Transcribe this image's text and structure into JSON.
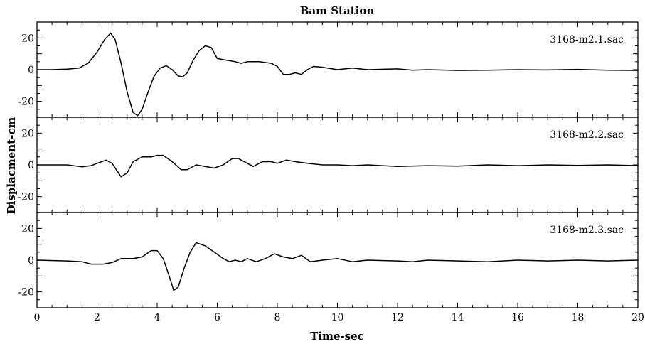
{
  "chart_data": {
    "type": "line",
    "title": "Bam Station",
    "xlabel": "Time-sec",
    "ylabel": "Displacment-cm",
    "xlim": [
      0,
      20
    ],
    "xticks": [
      "0",
      "2",
      "4",
      "6",
      "8",
      "10",
      "12",
      "14",
      "16",
      "18",
      "20"
    ],
    "panels": [
      {
        "name": "3168-m2.1.sac",
        "ylim": [
          -30,
          30
        ],
        "yticks": [
          "20",
          "0",
          "-20"
        ],
        "points": [
          [
            0,
            0
          ],
          [
            0.5,
            0
          ],
          [
            1.0,
            0.3
          ],
          [
            1.4,
            1
          ],
          [
            1.7,
            4
          ],
          [
            2.0,
            11
          ],
          [
            2.25,
            19
          ],
          [
            2.45,
            23
          ],
          [
            2.6,
            19
          ],
          [
            2.8,
            4
          ],
          [
            3.0,
            -14
          ],
          [
            3.2,
            -27
          ],
          [
            3.35,
            -29
          ],
          [
            3.5,
            -25
          ],
          [
            3.7,
            -14
          ],
          [
            3.9,
            -4
          ],
          [
            4.1,
            1
          ],
          [
            4.3,
            2.5
          ],
          [
            4.5,
            0
          ],
          [
            4.7,
            -4
          ],
          [
            4.85,
            -4.5
          ],
          [
            5.0,
            -2
          ],
          [
            5.2,
            6
          ],
          [
            5.4,
            12
          ],
          [
            5.6,
            15
          ],
          [
            5.8,
            14
          ],
          [
            6.0,
            7
          ],
          [
            6.3,
            6
          ],
          [
            6.6,
            5
          ],
          [
            6.8,
            4
          ],
          [
            7.0,
            5
          ],
          [
            7.4,
            5
          ],
          [
            7.8,
            4
          ],
          [
            8.0,
            2
          ],
          [
            8.2,
            -3
          ],
          [
            8.4,
            -3
          ],
          [
            8.6,
            -2
          ],
          [
            8.8,
            -3
          ],
          [
            9.0,
            0
          ],
          [
            9.2,
            2
          ],
          [
            9.5,
            1.5
          ],
          [
            10,
            0
          ],
          [
            10.5,
            1
          ],
          [
            11,
            0
          ],
          [
            12,
            0.5
          ],
          [
            12.5,
            -0.3
          ],
          [
            13,
            0
          ],
          [
            14,
            -0.5
          ],
          [
            15,
            -0.3
          ],
          [
            16,
            0
          ],
          [
            17,
            -0.2
          ],
          [
            18,
            0.2
          ],
          [
            19,
            -0.3
          ],
          [
            20,
            -0.5
          ]
        ]
      },
      {
        "name": "3168-m2.2.sac",
        "ylim": [
          -30,
          30
        ],
        "yticks": [
          "20",
          "0",
          "-20"
        ],
        "points": [
          [
            0,
            0
          ],
          [
            1.0,
            0
          ],
          [
            1.5,
            -1.2
          ],
          [
            1.8,
            -0.5
          ],
          [
            2.0,
            1
          ],
          [
            2.3,
            3
          ],
          [
            2.5,
            1
          ],
          [
            2.8,
            -7.5
          ],
          [
            3.0,
            -5
          ],
          [
            3.2,
            2
          ],
          [
            3.5,
            5
          ],
          [
            3.8,
            5
          ],
          [
            4.0,
            6
          ],
          [
            4.2,
            6
          ],
          [
            4.5,
            2
          ],
          [
            4.8,
            -3
          ],
          [
            5.0,
            -3
          ],
          [
            5.3,
            0
          ],
          [
            5.6,
            -1
          ],
          [
            5.9,
            -2
          ],
          [
            6.2,
            0
          ],
          [
            6.5,
            4
          ],
          [
            6.7,
            4
          ],
          [
            7.0,
            1
          ],
          [
            7.2,
            -1
          ],
          [
            7.5,
            2
          ],
          [
            7.8,
            2
          ],
          [
            8.0,
            1
          ],
          [
            8.3,
            3
          ],
          [
            8.6,
            2
          ],
          [
            9.0,
            1
          ],
          [
            9.5,
            0
          ],
          [
            10,
            0
          ],
          [
            10.5,
            -0.5
          ],
          [
            11,
            0
          ],
          [
            12,
            -1
          ],
          [
            13,
            -0.5
          ],
          [
            14,
            -0.8
          ],
          [
            15,
            0
          ],
          [
            16,
            -0.5
          ],
          [
            17,
            0
          ],
          [
            18,
            -0.3
          ],
          [
            19,
            0
          ],
          [
            20,
            -0.5
          ]
        ]
      },
      {
        "name": "3168-m2.3.sac",
        "ylim": [
          -30,
          30
        ],
        "yticks": [
          "20",
          "0",
          "-20"
        ],
        "points": [
          [
            0,
            0
          ],
          [
            1.0,
            -0.5
          ],
          [
            1.5,
            -1
          ],
          [
            1.8,
            -2.5
          ],
          [
            2.2,
            -2.5
          ],
          [
            2.5,
            -1.5
          ],
          [
            2.8,
            1
          ],
          [
            3.2,
            1
          ],
          [
            3.5,
            2
          ],
          [
            3.8,
            6
          ],
          [
            4.0,
            6
          ],
          [
            4.2,
            1
          ],
          [
            4.4,
            -10
          ],
          [
            4.55,
            -19
          ],
          [
            4.7,
            -17
          ],
          [
            4.9,
            -5
          ],
          [
            5.1,
            5
          ],
          [
            5.3,
            11
          ],
          [
            5.6,
            9
          ],
          [
            5.9,
            5
          ],
          [
            6.2,
            1
          ],
          [
            6.4,
            -1
          ],
          [
            6.6,
            0
          ],
          [
            6.8,
            -1
          ],
          [
            7.0,
            1
          ],
          [
            7.3,
            -1
          ],
          [
            7.6,
            1
          ],
          [
            7.9,
            4
          ],
          [
            8.2,
            2
          ],
          [
            8.5,
            1
          ],
          [
            8.8,
            3
          ],
          [
            9.1,
            -1
          ],
          [
            9.5,
            0
          ],
          [
            10,
            1
          ],
          [
            10.5,
            -1
          ],
          [
            11,
            0
          ],
          [
            12,
            -0.5
          ],
          [
            12.5,
            -1
          ],
          [
            13,
            0
          ],
          [
            14,
            -0.5
          ],
          [
            15,
            -1
          ],
          [
            16,
            0
          ],
          [
            17,
            -0.5
          ],
          [
            18,
            0
          ],
          [
            19,
            -0.5
          ],
          [
            20,
            0
          ]
        ]
      }
    ]
  }
}
